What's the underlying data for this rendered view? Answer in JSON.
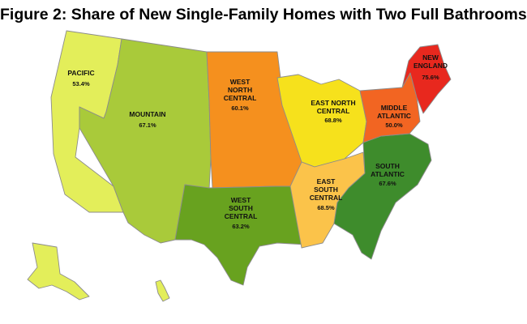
{
  "title": "Figure 2: Share of New Single-Family Homes with Two Full Bathrooms",
  "regions": [
    {
      "id": "pacific",
      "line1": "PACIFIC",
      "line2": "",
      "value": "53.4%",
      "color": "#e3ee5a"
    },
    {
      "id": "mountain",
      "line1": "MOUNTAIN",
      "line2": "",
      "value": "67.1%",
      "color": "#a9ca3a"
    },
    {
      "id": "west-north-central",
      "line1": "WEST",
      "line2": "NORTH",
      "line3": "CENTRAL",
      "value": "60.1%",
      "color": "#f5901e"
    },
    {
      "id": "east-north-central",
      "line1": "EAST NORTH",
      "line2": "CENTRAL",
      "value": "68.8%",
      "color": "#f6e11c"
    },
    {
      "id": "middle-atlantic",
      "line1": "MIDDLE",
      "line2": "ATLANTIC",
      "value": "50.0%",
      "color": "#f26522"
    },
    {
      "id": "new-england",
      "line1": "NEW",
      "line2": "ENGLAND",
      "value": "75.6%",
      "color": "#e8281e"
    },
    {
      "id": "west-south-central",
      "line1": "WEST",
      "line2": "SOUTH",
      "line3": "CENTRAL",
      "value": "63.2%",
      "color": "#68a21f"
    },
    {
      "id": "east-south-central",
      "line1": "EAST",
      "line2": "SOUTH",
      "line3": "CENTRAL",
      "value": "68.5%",
      "color": "#fbc34a"
    },
    {
      "id": "south-atlantic",
      "line1": "SOUTH",
      "line2": "ATLANTIC",
      "value": "67.6%",
      "color": "#3e8c2c"
    }
  ]
}
